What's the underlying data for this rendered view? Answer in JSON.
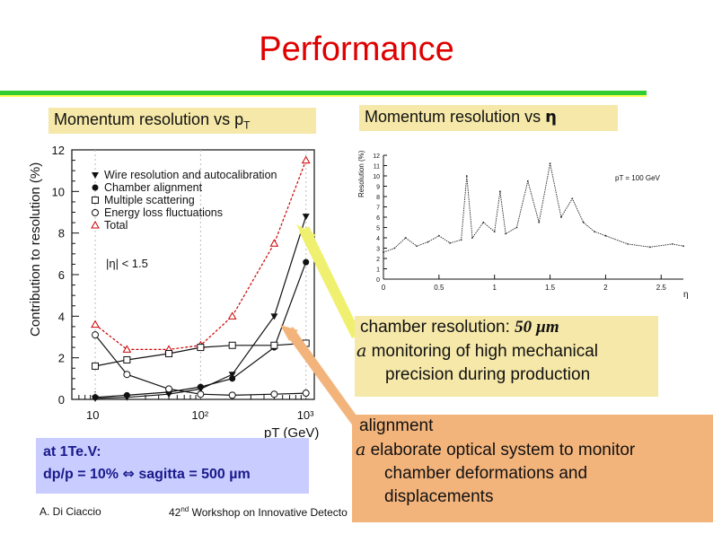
{
  "slide": {
    "title": "Performance",
    "label_pt": "Momentum resolution vs p",
    "label_pt_sub": "T",
    "label_eta_prefix": "Momentum resolution vs ",
    "label_eta_symbol": "η",
    "chamber_line1_prefix": "chamber resolution: ",
    "chamber_line1_value": "50 µm",
    "chamber_bullet_glyph": "a",
    "chamber_line2": "monitoring of high mechanical",
    "chamber_line3": "precision during production",
    "align_line1": "alignment",
    "align_bullet_glyph": "a",
    "align_line2": "elaborate optical  system to monitor",
    "align_line3": "chamber deformations and",
    "align_line4": "displacements",
    "tev_line1": "at 1Te.V:",
    "tev_line2_a": "dp/p = 10% ",
    "tev_arrow": "⇔",
    "tev_line2_b": " sagitta = 500 µm",
    "footer_author": "A. Di Ciaccio",
    "footer_workshop_pre": "42",
    "footer_workshop_sup": "nd",
    "footer_workshop_post": " Workshop on Innovative Detecto"
  },
  "colors": {
    "title": "#e00000",
    "label_bg": "#f5e8a8",
    "align_bg": "#f3b47c",
    "tev_bg": "#c8ccff",
    "total_curve": "#cc0000",
    "arrow_yellow": "#f0f070",
    "arrow_orange": "#f3b47c"
  },
  "chart_data": [
    {
      "type": "line",
      "title": "Momentum resolution vs pT",
      "xlabel": "p_T (GeV)",
      "ylabel": "Contribution to resolution (%)",
      "xscale": "log",
      "xlim": [
        6,
        1200
      ],
      "ylim": [
        0,
        12
      ],
      "x_ticks": [
        "10",
        "10²",
        "10³"
      ],
      "y_ticks": [
        "0",
        "2",
        "4",
        "6",
        "8",
        "10",
        "12"
      ],
      "annotation": "|η| < 1.5",
      "legend": [
        {
          "name": "Wire resolution and autocalibration",
          "marker": "filled-triangle-down"
        },
        {
          "name": "Chamber alignment",
          "marker": "filled-circle"
        },
        {
          "name": "Multiple scattering",
          "marker": "open-square"
        },
        {
          "name": "Energy loss fluctuations",
          "marker": "open-circle"
        },
        {
          "name": "Total",
          "marker": "open-triangle-red"
        }
      ],
      "series": [
        {
          "name": "Total",
          "x": [
            10,
            20,
            50,
            100,
            200,
            500,
            1000
          ],
          "values": [
            3.6,
            2.4,
            2.4,
            2.6,
            4.0,
            7.5,
            11.5
          ]
        },
        {
          "name": "Wire resolution and autocalibration",
          "x": [
            10,
            20,
            50,
            100,
            200,
            500,
            1000
          ],
          "values": [
            0.05,
            0.1,
            0.25,
            0.5,
            1.2,
            4.0,
            8.8
          ]
        },
        {
          "name": "Chamber alignment",
          "x": [
            10,
            20,
            50,
            100,
            200,
            500,
            1000
          ],
          "values": [
            0.1,
            0.2,
            0.35,
            0.6,
            1.0,
            2.5,
            6.6
          ]
        },
        {
          "name": "Multiple scattering",
          "x": [
            10,
            20,
            50,
            100,
            200,
            500,
            1000
          ],
          "values": [
            1.6,
            1.9,
            2.2,
            2.5,
            2.6,
            2.6,
            2.7
          ]
        },
        {
          "name": "Energy loss fluctuations",
          "x": [
            10,
            20,
            50,
            100,
            200,
            500,
            1000
          ],
          "values": [
            3.1,
            1.2,
            0.5,
            0.25,
            0.2,
            0.25,
            0.3
          ]
        }
      ]
    },
    {
      "type": "line",
      "title": "Momentum resolution vs η",
      "xlabel": "η",
      "ylabel": "Resolution (%)",
      "xlim": [
        0,
        2.7
      ],
      "ylim": [
        0,
        12
      ],
      "x_ticks": [
        "0",
        "0.5",
        "1",
        "1.5",
        "2",
        "2.5"
      ],
      "y_ticks": [
        "0",
        "1",
        "2",
        "3",
        "4",
        "5",
        "6",
        "7",
        "8",
        "9",
        "10",
        "11",
        "12"
      ],
      "annotation": "p_T = 100 GeV",
      "series": [
        {
          "name": "Resolution",
          "x": [
            0,
            0.1,
            0.2,
            0.3,
            0.4,
            0.5,
            0.6,
            0.7,
            0.75,
            0.8,
            0.9,
            1.0,
            1.05,
            1.1,
            1.2,
            1.3,
            1.4,
            1.5,
            1.6,
            1.7,
            1.8,
            1.9,
            2.0,
            2.2,
            2.4,
            2.6,
            2.7
          ],
          "values": [
            2.6,
            3.0,
            4.0,
            3.2,
            3.6,
            4.2,
            3.5,
            3.8,
            10.0,
            4.0,
            5.5,
            4.6,
            8.5,
            4.4,
            5.0,
            9.5,
            5.5,
            11.2,
            6.0,
            7.8,
            5.5,
            4.6,
            4.2,
            3.4,
            3.1,
            3.4,
            3.2
          ]
        }
      ]
    }
  ]
}
